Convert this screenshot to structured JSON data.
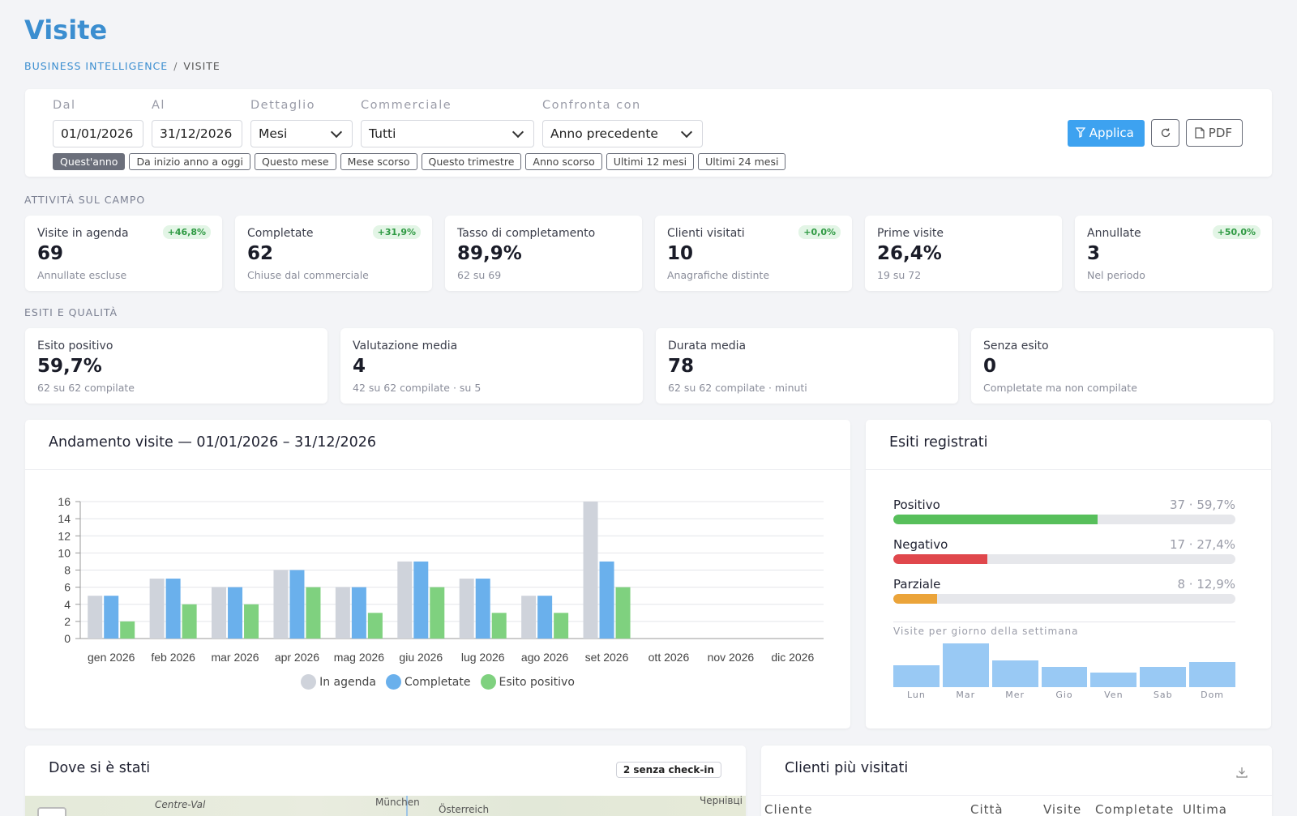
{
  "page": {
    "title": "Visite"
  },
  "breadcrumb": {
    "root": "BUSINESS INTELLIGENCE",
    "current": "VISITE"
  },
  "filters": {
    "dal": {
      "label": "Dal",
      "value": "01/01/2026"
    },
    "al": {
      "label": "Al",
      "value": "31/12/2026"
    },
    "dettaglio": {
      "label": "Dettaglio",
      "value": "Mesi"
    },
    "commerciale": {
      "label": "Commerciale",
      "value": "Tutti"
    },
    "confronta": {
      "label": "Confronta con",
      "value": "Anno precedente"
    },
    "chips": [
      "Quest'anno",
      "Da inizio anno a oggi",
      "Questo mese",
      "Mese scorso",
      "Questo trimestre",
      "Anno scorso",
      "Ultimi 12 mesi",
      "Ultimi 24 mesi"
    ],
    "active_chip": "Quest'anno",
    "apply_label": "Applica",
    "pdf_label": "PDF"
  },
  "sections": {
    "activity": "ATTIVITÀ SUL CAMPO",
    "quality": "ESITI E QUALITÀ"
  },
  "kpi_activity": [
    {
      "label": "Visite in agenda",
      "value": "69",
      "sub": "Annullate escluse",
      "badge": "+46,8%"
    },
    {
      "label": "Completate",
      "value": "62",
      "sub": "Chiuse dal commerciale",
      "badge": "+31,9%"
    },
    {
      "label": "Tasso di completamento",
      "value": "89,9%",
      "sub": "62 su 69",
      "badge": ""
    },
    {
      "label": "Clienti visitati",
      "value": "10",
      "sub": "Anagrafiche distinte",
      "badge": "+0,0%"
    },
    {
      "label": "Prime visite",
      "value": "26,4%",
      "sub": "19 su 72",
      "badge": ""
    },
    {
      "label": "Annullate",
      "value": "3",
      "sub": "Nel periodo",
      "badge": "+50,0%"
    }
  ],
  "kpi_quality": [
    {
      "label": "Esito positivo",
      "value": "59,7%",
      "sub": "62 su 62 compilate"
    },
    {
      "label": "Valutazione media",
      "value": "4",
      "sub": "42 su 62 compilate · su 5"
    },
    {
      "label": "Durata media",
      "value": "78",
      "sub": "62 su 62 compilate · minuti"
    },
    {
      "label": "Senza esito",
      "value": "0",
      "sub": "Completate ma non compilate"
    }
  ],
  "trend_panel": {
    "title": "Andamento visite — 01/01/2026 – 31/12/2026"
  },
  "chart_data": {
    "type": "bar",
    "categories": [
      "gen 2026",
      "feb 2026",
      "mar 2026",
      "apr 2026",
      "mag 2026",
      "giu 2026",
      "lug 2026",
      "ago 2026",
      "set 2026",
      "ott 2026",
      "nov 2026",
      "dic 2026"
    ],
    "series": [
      {
        "name": "In agenda",
        "color": "#cfd3db",
        "values": [
          5,
          7,
          6,
          8,
          6,
          9,
          7,
          5,
          16,
          0,
          0,
          0
        ]
      },
      {
        "name": "Completate",
        "color": "#6ab0ec",
        "values": [
          5,
          7,
          6,
          8,
          6,
          9,
          7,
          5,
          9,
          0,
          0,
          0
        ]
      },
      {
        "name": "Esito positivo",
        "color": "#7fd17f",
        "values": [
          2,
          4,
          4,
          6,
          3,
          6,
          3,
          3,
          6,
          0,
          0,
          0
        ]
      }
    ],
    "ylim": [
      0,
      16
    ],
    "yticks": [
      0,
      2,
      4,
      6,
      8,
      10,
      12,
      14,
      16
    ],
    "grid": true,
    "legend": "bottom"
  },
  "outcomes_panel": {
    "title": "Esiti registrati",
    "items": [
      {
        "label": "Positivo",
        "value": "37 · 59,7%",
        "fraction": 0.597,
        "color": "#57bf5b"
      },
      {
        "label": "Negativo",
        "value": "17 · 27,4%",
        "fraction": 0.274,
        "color": "#e0474c"
      },
      {
        "label": "Parziale",
        "value": "8 · 12,9%",
        "fraction": 0.129,
        "color": "#eba43a"
      }
    ],
    "weekday_title": "Visite per giorno della settimana",
    "weekdays": [
      {
        "name": "Lun",
        "level": 0.5
      },
      {
        "name": "Mar",
        "level": 1.0
      },
      {
        "name": "Mer",
        "level": 0.62
      },
      {
        "name": "Gio",
        "level": 0.46
      },
      {
        "name": "Ven",
        "level": 0.34
      },
      {
        "name": "Sab",
        "level": 0.46
      },
      {
        "name": "Dom",
        "level": 0.58
      }
    ]
  },
  "map_panel": {
    "title": "Dove si è stati",
    "badge": "2 senza check-in",
    "labels": [
      "Centre-Val",
      "München",
      "Österreich",
      "Чернівці"
    ]
  },
  "clients_panel": {
    "title": "Clienti più visitati",
    "columns": [
      "Cliente",
      "Città",
      "Visite",
      "Completate",
      "Ultima"
    ]
  },
  "icons": {
    "filter": "filter-icon",
    "refresh": "refresh-icon",
    "pdf": "pdf-file-icon",
    "download": "download-icon",
    "chevron": "chevron-down-icon"
  }
}
